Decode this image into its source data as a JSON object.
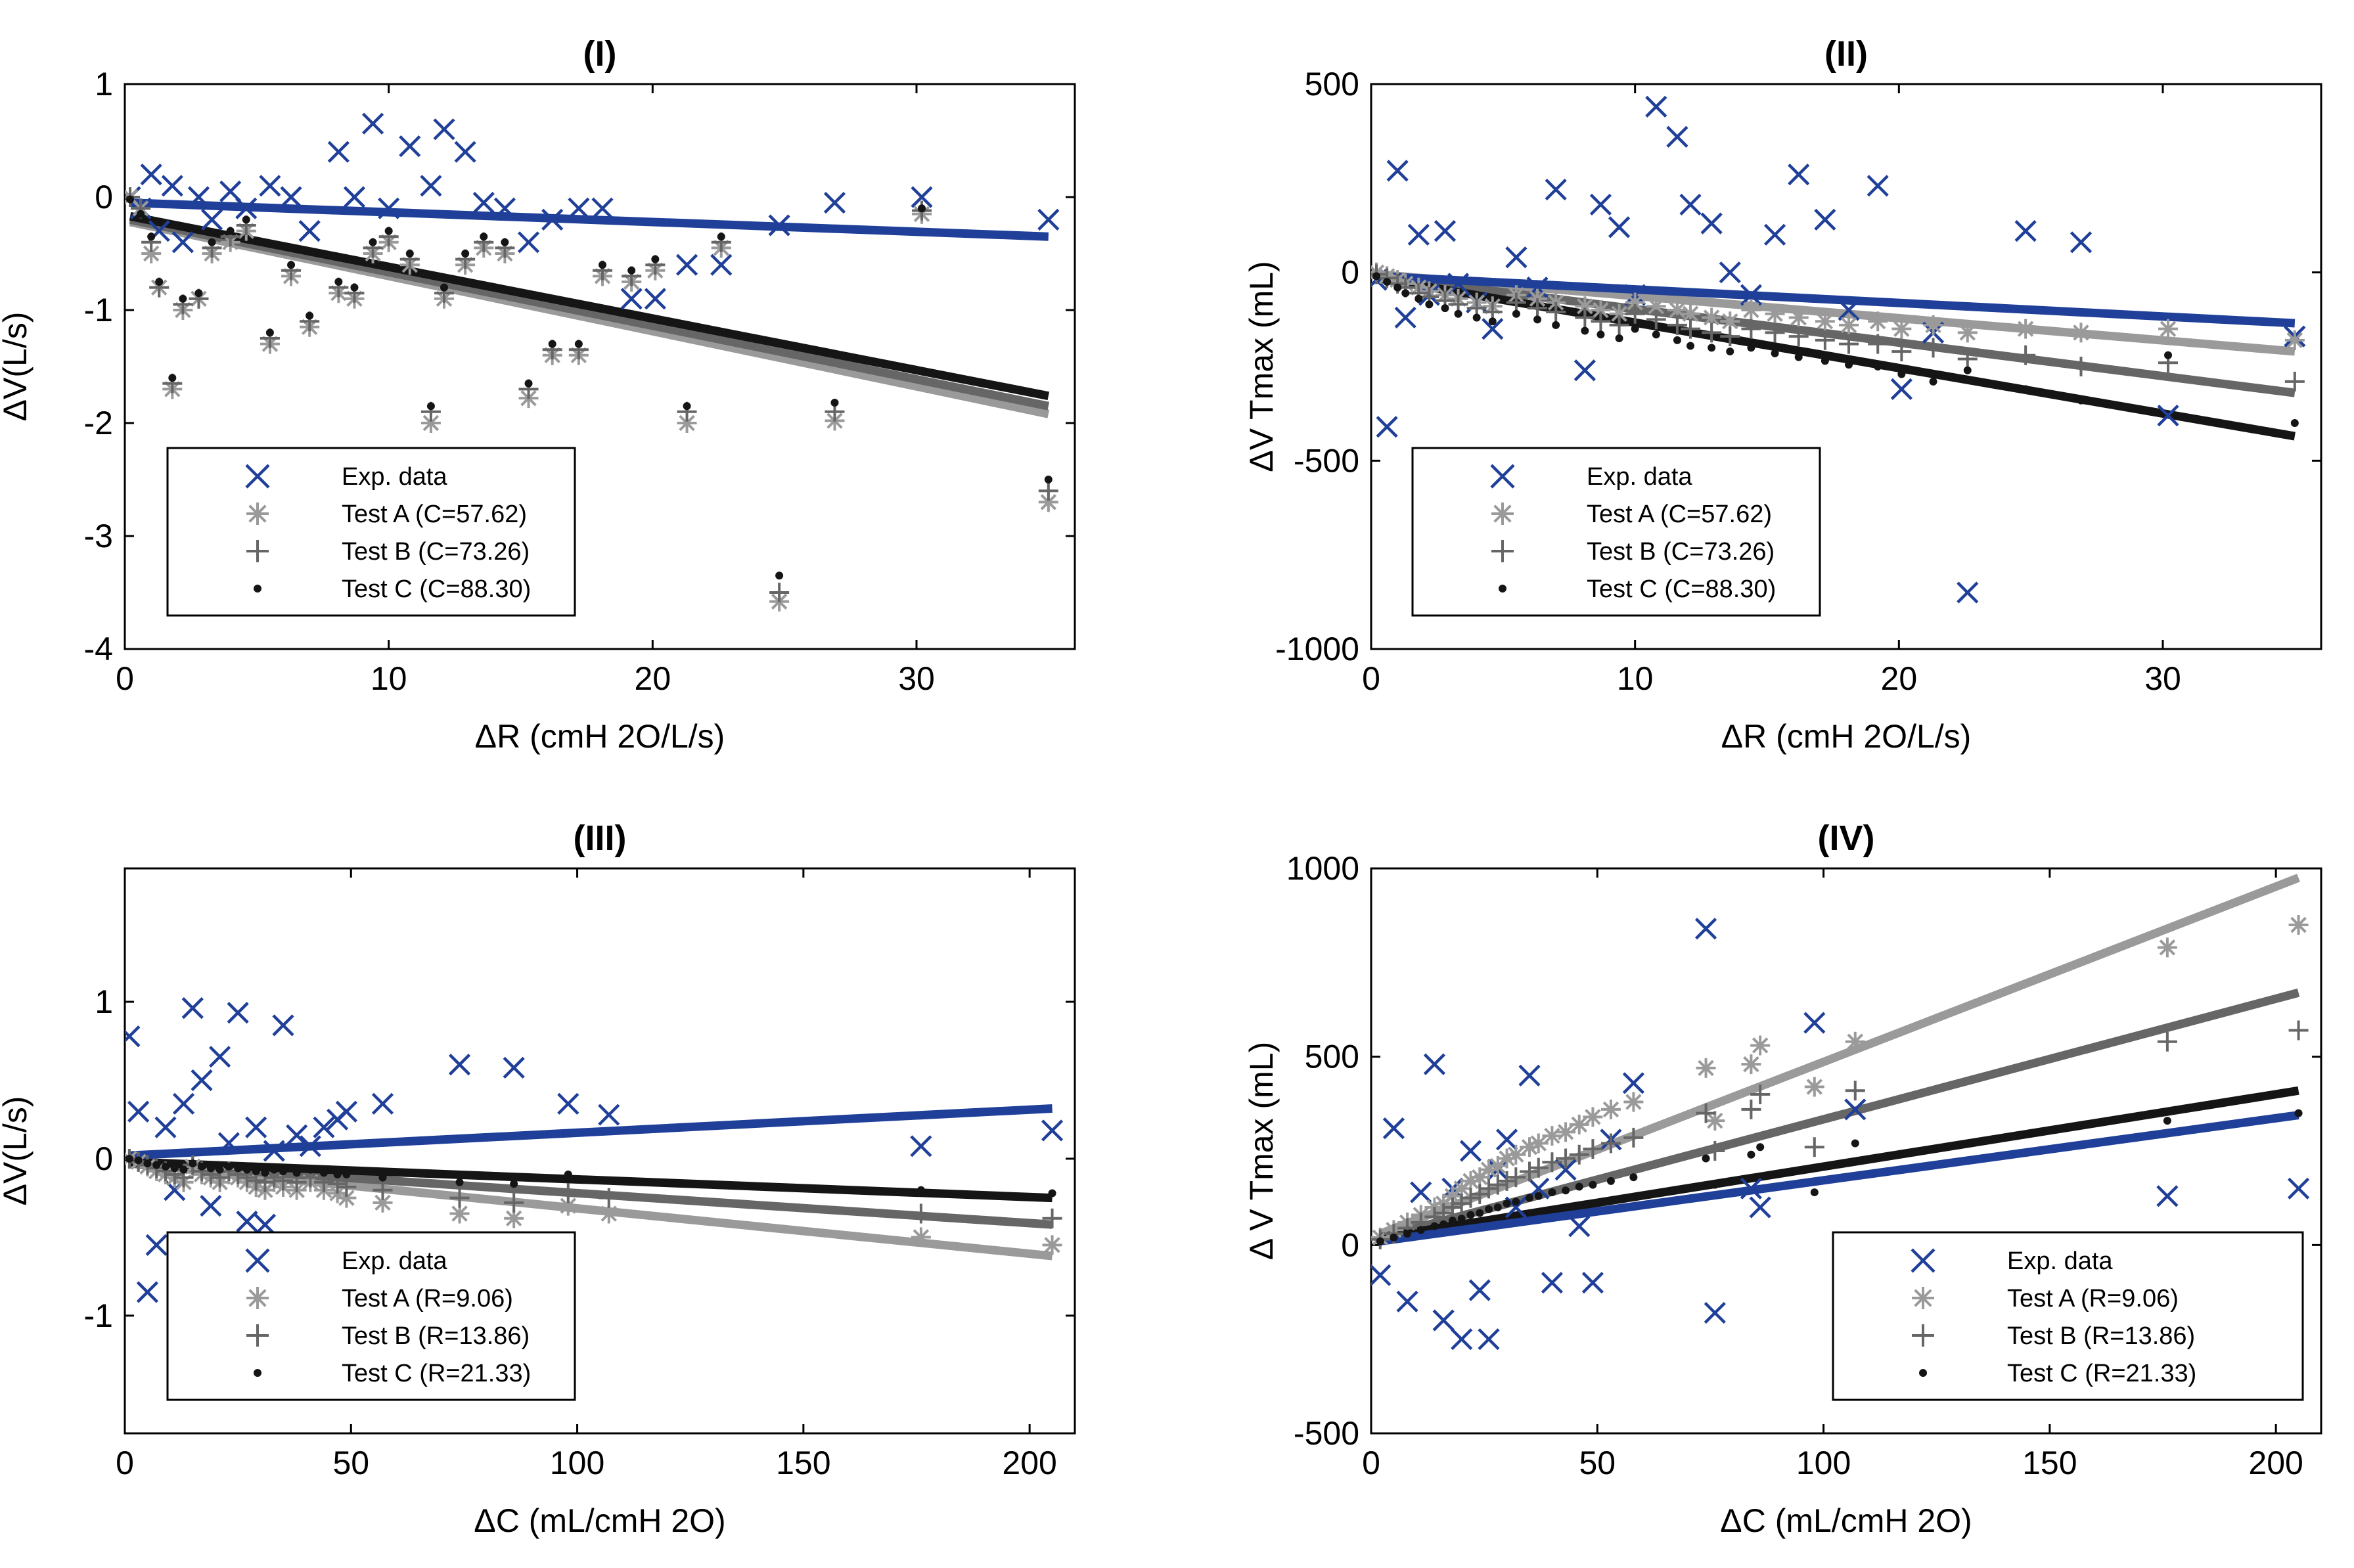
{
  "colors": {
    "blue": "#1f3f99",
    "testA": "#9a9a9a",
    "testB": "#666666",
    "testC": "#151515"
  },
  "chart_data": [
    {
      "type": "scatter",
      "title": "(I)",
      "xlabel": "ΔR (cmH 2O/L/s)",
      "ylabel": "ΔV(L/s)",
      "xlim": [
        0,
        36
      ],
      "ylim": [
        -4,
        1
      ],
      "xticks": [
        0,
        10,
        20,
        30
      ],
      "yticks": [
        1,
        0,
        -1,
        -2,
        -3,
        -4
      ],
      "xtick_labels": [
        "0",
        "10",
        "20",
        "30"
      ],
      "ytick_labels": [
        "1",
        "0",
        "-1",
        "-2",
        "-3",
        "-4"
      ],
      "legend_position": "bottom-left",
      "legend": [
        "Exp. data",
        "Test A (C=57.62)",
        "Test B (C=73.26)",
        "Test C (C=88.30)"
      ],
      "x": [
        0.2,
        0.6,
        1.0,
        1.3,
        1.8,
        2.2,
        2.8,
        3.3,
        4.0,
        4.6,
        5.5,
        6.3,
        7.0,
        8.1,
        8.7,
        9.4,
        10.0,
        10.8,
        11.6,
        12.1,
        12.9,
        13.6,
        14.4,
        15.3,
        16.2,
        17.2,
        18.1,
        19.2,
        20.1,
        21.3,
        22.6,
        24.8,
        26.9,
        30.2,
        35.0
      ],
      "series": [
        {
          "name": "Exp. data",
          "marker": "x",
          "color": "#1f3f99",
          "values": [
            0.0,
            -0.1,
            0.2,
            -0.3,
            0.1,
            -0.4,
            0.0,
            -0.2,
            0.05,
            -0.1,
            0.1,
            0.0,
            -0.3,
            0.4,
            0.0,
            0.65,
            -0.1,
            0.45,
            0.1,
            0.6,
            0.4,
            -0.05,
            -0.1,
            -0.4,
            -0.2,
            -0.1,
            -0.1,
            -0.9,
            -0.9,
            -0.6,
            -0.6,
            -0.25,
            -0.05,
            0.0,
            -0.2
          ],
          "fit": [
            -0.05,
            -0.35
          ]
        },
        {
          "name": "Test A (C=57.62)",
          "marker": "*",
          "color": "#9a9a9a",
          "values": [
            0.0,
            -0.1,
            -0.5,
            -0.8,
            -1.7,
            -1.0,
            -0.9,
            -0.5,
            -0.4,
            -0.3,
            -1.3,
            -0.7,
            -1.15,
            -0.85,
            -0.9,
            -0.5,
            -0.4,
            -0.6,
            -2.0,
            -0.9,
            -0.6,
            -0.45,
            -0.5,
            -1.78,
            -1.4,
            -1.4,
            -0.7,
            -0.75,
            -0.65,
            -2.0,
            -0.45,
            -3.58,
            -1.98,
            -0.15,
            -2.7
          ],
          "fit": [
            -0.22,
            -1.92
          ]
        },
        {
          "name": "Test B (C=73.26)",
          "marker": "+",
          "color": "#666666",
          "values": [
            0.0,
            -0.1,
            -0.4,
            -0.8,
            -1.65,
            -0.95,
            -0.9,
            -0.45,
            -0.35,
            -0.25,
            -1.25,
            -0.65,
            -1.1,
            -0.8,
            -0.85,
            -0.45,
            -0.35,
            -0.55,
            -1.9,
            -0.85,
            -0.55,
            -0.4,
            -0.45,
            -1.7,
            -1.35,
            -1.35,
            -0.65,
            -0.7,
            -0.6,
            -1.9,
            -0.4,
            -3.5,
            -1.9,
            -0.12,
            -2.6
          ],
          "fit": [
            -0.2,
            -1.85
          ]
        },
        {
          "name": "Test C (C=88.30)",
          "marker": "dot",
          "color": "#151515",
          "values": [
            -0.02,
            -0.15,
            -0.35,
            -0.75,
            -1.6,
            -0.9,
            -0.85,
            -0.4,
            -0.3,
            -0.2,
            -1.2,
            -0.6,
            -1.05,
            -0.75,
            -0.8,
            -0.4,
            -0.3,
            -0.5,
            -1.85,
            -0.8,
            -0.5,
            -0.35,
            -0.4,
            -1.65,
            -1.3,
            -1.3,
            -0.6,
            -0.65,
            -0.55,
            -1.85,
            -0.35,
            -3.35,
            -1.82,
            -0.1,
            -2.5
          ],
          "fit": [
            -0.17,
            -1.76
          ]
        }
      ]
    },
    {
      "type": "scatter",
      "title": "(II)",
      "xlabel": "ΔR (cmH 2O/L/s)",
      "ylabel": "ΔV Tmax (mL)",
      "xlim": [
        0,
        36
      ],
      "ylim": [
        -1000,
        500
      ],
      "xticks": [
        0,
        10,
        20,
        30
      ],
      "yticks": [
        500,
        0,
        -500,
        -1000
      ],
      "xtick_labels": [
        "0",
        "10",
        "20",
        "30"
      ],
      "ytick_labels": [
        "500",
        "0",
        "-500",
        "-1000"
      ],
      "legend_position": "bottom-left",
      "legend": [
        "Exp. data",
        "Test A (C=57.62)",
        "Test B (C=73.26)",
        "Test C (C=88.30)"
      ],
      "x": [
        0.2,
        0.6,
        1.0,
        1.3,
        1.8,
        2.2,
        2.8,
        3.3,
        4.0,
        4.6,
        5.5,
        6.3,
        7.0,
        8.1,
        8.7,
        9.4,
        10.0,
        10.8,
        11.6,
        12.1,
        12.9,
        13.6,
        14.4,
        15.3,
        16.2,
        17.2,
        18.1,
        19.2,
        20.1,
        21.3,
        22.6,
        24.8,
        26.9,
        30.2,
        35.0
      ],
      "series": [
        {
          "name": "Exp. data",
          "marker": "x",
          "color": "#1f3f99",
          "values": [
            -20,
            -410,
            270,
            -120,
            100,
            -60,
            110,
            -30,
            -80,
            -150,
            40,
            -40,
            220,
            -260,
            180,
            120,
            -60,
            440,
            360,
            180,
            130,
            0,
            -60,
            100,
            260,
            140,
            -100,
            230,
            -310,
            -160,
            -850,
            110,
            80,
            -380,
            -170
          ],
          "fit": [
            -10,
            -135
          ]
        },
        {
          "name": "Test A (C=57.62)",
          "marker": "*",
          "color": "#9a9a9a",
          "values": [
            0,
            -10,
            -20,
            -30,
            -40,
            -50,
            -60,
            -70,
            -80,
            -90,
            -60,
            -70,
            -80,
            -90,
            -100,
            -110,
            -80,
            -90,
            -100,
            -110,
            -120,
            -130,
            -100,
            -110,
            -120,
            -130,
            -140,
            -130,
            -150,
            -140,
            -160,
            -150,
            -160,
            -150,
            -180
          ],
          "fit": [
            -5,
            -210
          ]
        },
        {
          "name": "Test B (C=73.26)",
          "marker": "+",
          "color": "#666666",
          "values": [
            -5,
            -15,
            -30,
            -40,
            -55,
            -65,
            -75,
            -85,
            -95,
            -105,
            -80,
            -95,
            -105,
            -120,
            -130,
            -140,
            -110,
            -125,
            -140,
            -150,
            -160,
            -170,
            -150,
            -160,
            -170,
            -180,
            -190,
            -190,
            -210,
            -200,
            -230,
            -220,
            -250,
            -240,
            -290
          ],
          "fit": [
            -10,
            -320
          ]
        },
        {
          "name": "Test C (C=88.30)",
          "marker": "dot",
          "color": "#151515",
          "values": [
            -10,
            -25,
            -40,
            -55,
            -70,
            -85,
            -95,
            -110,
            -120,
            -130,
            -110,
            -125,
            -140,
            -155,
            -165,
            -175,
            -150,
            -165,
            -180,
            -195,
            -200,
            -210,
            -200,
            -215,
            -225,
            -235,
            -245,
            -250,
            -270,
            -290,
            -260,
            -310,
            -340,
            -220,
            -400
          ],
          "fit": [
            -15,
            -435
          ]
        }
      ]
    },
    {
      "type": "scatter",
      "title": "(III)",
      "xlabel": "ΔC (mL/cmH 2O)",
      "ylabel": "ΔV(L/s)",
      "xlim": [
        0,
        210
      ],
      "ylim": [
        -1.75,
        1.85
      ],
      "xticks": [
        0,
        50,
        100,
        150,
        200
      ],
      "yticks": [
        1,
        0,
        -1
      ],
      "xtick_labels": [
        "0",
        "50",
        "100",
        "150",
        "200"
      ],
      "ytick_labels": [
        "1",
        "0",
        "-1"
      ],
      "legend_position": "bottom-left",
      "legend": [
        "Exp. data",
        "Test A (R=9.06)",
        "Test B (R=13.86)",
        "Test C (R=21.33)"
      ],
      "x": [
        1,
        3,
        5,
        7,
        9,
        11,
        13,
        15,
        17,
        19,
        21,
        23,
        25,
        27,
        29,
        31,
        33,
        35,
        38,
        41,
        44,
        47,
        49,
        57,
        74,
        86,
        98,
        107,
        176,
        205
      ],
      "series": [
        {
          "name": "Exp. data",
          "marker": "x",
          "color": "#1f3f99",
          "values": [
            0.78,
            0.3,
            -0.85,
            -0.55,
            0.2,
            -0.2,
            0.35,
            0.96,
            0.5,
            -0.3,
            0.65,
            0.1,
            0.93,
            -0.4,
            0.2,
            -0.42,
            0.05,
            0.85,
            0.15,
            0.08,
            0.2,
            0.25,
            0.3,
            0.35,
            0.6,
            0.58,
            0.35,
            0.28,
            0.08,
            0.18
          ],
          "fit": [
            0.02,
            0.32
          ]
        },
        {
          "name": "Test A (R=9.06)",
          "marker": "*",
          "color": "#9a9a9a",
          "values": [
            0.0,
            -0.02,
            -0.05,
            -0.08,
            -0.1,
            -0.12,
            -0.15,
            -0.05,
            -0.1,
            -0.12,
            -0.15,
            -0.1,
            -0.12,
            -0.15,
            -0.18,
            -0.2,
            -0.15,
            -0.18,
            -0.2,
            -0.15,
            -0.2,
            -0.22,
            -0.25,
            -0.28,
            -0.35,
            -0.38,
            -0.3,
            -0.35,
            -0.5,
            -0.55
          ],
          "fit": [
            -0.03,
            -0.62
          ]
        },
        {
          "name": "Test B (R=13.86)",
          "marker": "+",
          "color": "#666666",
          "values": [
            0.0,
            -0.02,
            -0.04,
            -0.06,
            -0.08,
            -0.1,
            -0.12,
            -0.04,
            -0.08,
            -0.1,
            -0.12,
            -0.08,
            -0.1,
            -0.12,
            -0.14,
            -0.15,
            -0.12,
            -0.14,
            -0.15,
            -0.12,
            -0.15,
            -0.16,
            -0.18,
            -0.2,
            -0.25,
            -0.28,
            -0.22,
            -0.25,
            -0.35,
            -0.38
          ],
          "fit": [
            -0.03,
            -0.42
          ]
        },
        {
          "name": "Test C (R=21.33)",
          "marker": "dot",
          "color": "#151515",
          "values": [
            0.0,
            -0.01,
            -0.03,
            -0.04,
            -0.05,
            -0.06,
            -0.07,
            -0.03,
            -0.05,
            -0.06,
            -0.07,
            -0.05,
            -0.06,
            -0.07,
            -0.08,
            -0.09,
            -0.07,
            -0.08,
            -0.09,
            -0.07,
            -0.09,
            -0.1,
            -0.1,
            -0.12,
            -0.15,
            -0.16,
            -0.1,
            -0.14,
            -0.2,
            -0.22
          ],
          "fit": [
            -0.02,
            -0.25
          ]
        }
      ]
    },
    {
      "type": "scatter",
      "title": "(IV)",
      "xlabel": "ΔC (mL/cmH 2O)",
      "ylabel": "Δ V Tmax (mL)",
      "xlim": [
        0,
        210
      ],
      "ylim": [
        -500,
        1000
      ],
      "xticks": [
        0,
        50,
        100,
        150,
        200
      ],
      "yticks": [
        1000,
        500,
        0,
        -500
      ],
      "xtick_labels": [
        "0",
        "50",
        "100",
        "150",
        "200"
      ],
      "ytick_labels": [
        "1000",
        "500",
        "0",
        "-500"
      ],
      "legend_position": "bottom-right",
      "legend": [
        "Exp. data",
        "Test A (R=9.06)",
        "Test B (R=13.86)",
        "Test C (R=21.33)"
      ],
      "x": [
        2,
        5,
        8,
        11,
        14,
        16,
        18,
        20,
        22,
        24,
        26,
        28,
        30,
        32,
        35,
        37,
        40,
        43,
        46,
        49,
        53,
        58,
        74,
        76,
        84,
        86,
        98,
        107,
        176,
        205
      ],
      "series": [
        {
          "name": "Exp. data",
          "marker": "x",
          "color": "#1f3f99",
          "values": [
            -80,
            310,
            -150,
            140,
            480,
            -200,
            150,
            -250,
            250,
            -120,
            -250,
            200,
            280,
            100,
            450,
            150,
            -100,
            200,
            50,
            -100,
            280,
            430,
            840,
            -180,
            150,
            100,
            590,
            360,
            130,
            150
          ],
          "fit": [
            10,
            345
          ]
        },
        {
          "name": "Test A (R=9.06)",
          "marker": "*",
          "color": "#9a9a9a",
          "values": [
            20,
            40,
            60,
            80,
            100,
            110,
            130,
            150,
            170,
            180,
            200,
            210,
            230,
            240,
            260,
            270,
            290,
            300,
            320,
            340,
            360,
            380,
            470,
            330,
            480,
            530,
            420,
            540,
            790,
            850
          ],
          "fit": [
            30,
            975
          ]
        },
        {
          "name": "Test B (R=13.86)",
          "marker": "+",
          "color": "#666666",
          "values": [
            15,
            30,
            45,
            60,
            75,
            85,
            100,
            110,
            125,
            135,
            150,
            160,
            170,
            180,
            195,
            205,
            220,
            230,
            240,
            255,
            270,
            285,
            350,
            250,
            360,
            400,
            260,
            410,
            540,
            570
          ],
          "fit": [
            20,
            670
          ]
        },
        {
          "name": "Test C (R=21.33)",
          "marker": "dot",
          "color": "#151515",
          "values": [
            10,
            20,
            30,
            40,
            50,
            55,
            65,
            70,
            80,
            85,
            95,
            100,
            110,
            115,
            125,
            130,
            140,
            145,
            155,
            160,
            170,
            180,
            230,
            160,
            240,
            260,
            140,
            270,
            330,
            350
          ],
          "fit": [
            20,
            410
          ]
        }
      ]
    }
  ]
}
